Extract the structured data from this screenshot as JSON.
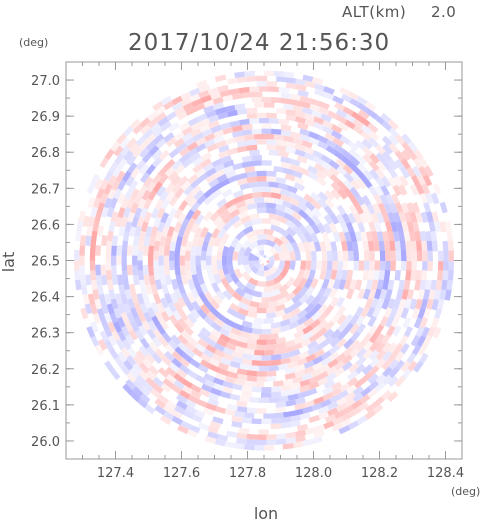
{
  "chart_data": {
    "type": "heatmap",
    "subtype": "polar radar plan-position indicator",
    "title": "2017/10/24 21:56:30",
    "subtitle_label": "ALT(km)",
    "subtitle_value": "2.0",
    "xlabel": "lon",
    "ylabel": "lat",
    "xunit": "(deg)",
    "yunit": "(deg)",
    "xlim": [
      127.25,
      128.45
    ],
    "ylim": [
      25.95,
      27.05
    ],
    "xticks": [
      "127.4",
      "127.6",
      "127.8",
      "128.0",
      "128.2",
      "128.4"
    ],
    "yticks": [
      "26.0",
      "26.1",
      "26.2",
      "26.3",
      "26.4",
      "26.5",
      "26.6",
      "26.7",
      "26.8",
      "26.9",
      "27.0"
    ],
    "center": {
      "lon": 127.85,
      "lat": 26.5
    },
    "radius_deg": 0.55,
    "grid": false,
    "colors": {
      "positive": "#ff8c8c",
      "negative": "#8c8cff",
      "neutral": "#ffffff",
      "frame": "#999999",
      "text": "#555555"
    }
  }
}
